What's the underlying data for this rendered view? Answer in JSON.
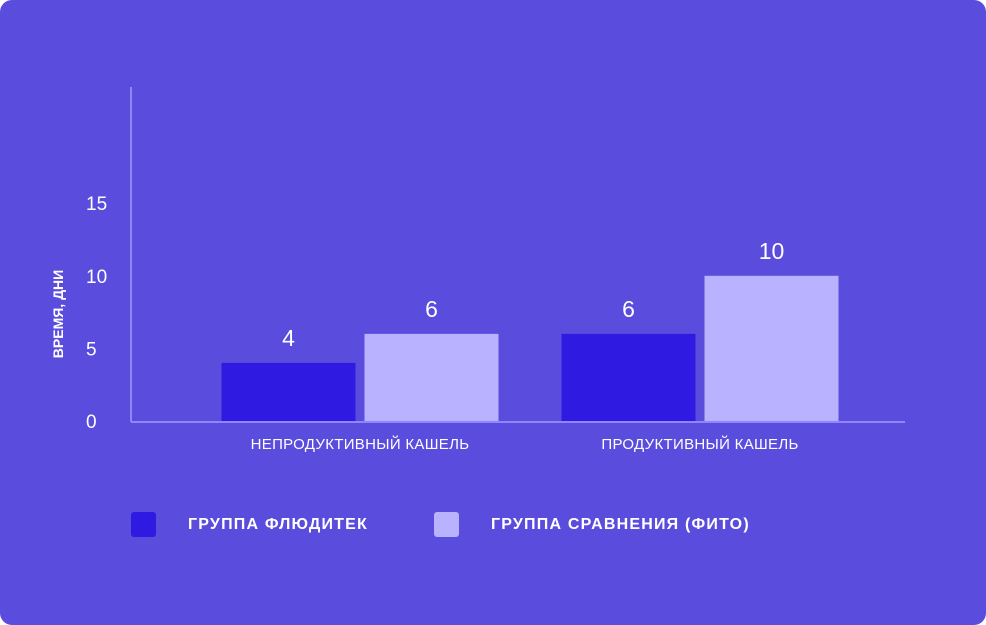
{
  "chart_data": {
    "type": "bar",
    "categories": [
      "НЕПРОДУКТИВНЫЙ КАШЕЛЬ",
      "ПРОДУКТИВНЫЙ КАШЕЛЬ"
    ],
    "series": [
      {
        "name": "ГРУППА ФЛЮДИТЕК",
        "values": [
          4,
          6
        ],
        "color": "#2e1ae0"
      },
      {
        "name": "ГРУППА СРАВНЕНИЯ (ФИТО)",
        "values": [
          6,
          10
        ],
        "color": "#b8b2ff"
      }
    ],
    "value_labels": [
      [
        "4",
        "6"
      ],
      [
        "6",
        "10"
      ]
    ],
    "ylabel": "ВРЕМЯ, ДНИ",
    "yticks": [
      0,
      5,
      10,
      15
    ],
    "ylim": [
      0,
      23
    ],
    "grid": false,
    "legend_position": "bottom-left"
  },
  "colors": {
    "background": "#5a4cdc",
    "axis": "#8f86ff"
  }
}
